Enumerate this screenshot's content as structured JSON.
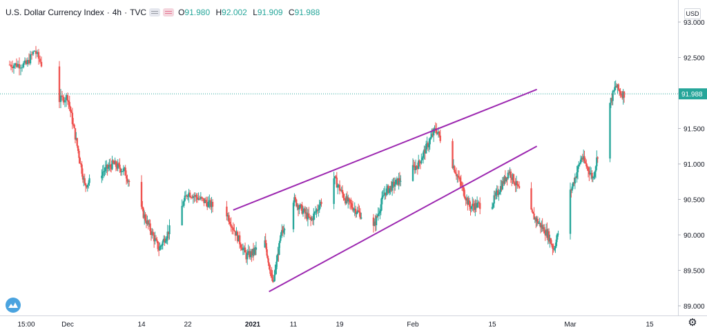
{
  "legend": {
    "title": "U.S. Dollar Currency Index",
    "interval": "4h",
    "source": "TVC",
    "open_label": "O",
    "open": "91.980",
    "high_label": "H",
    "high": "92.002",
    "low_label": "L",
    "low": "91.909",
    "close_label": "C",
    "close": "91.988"
  },
  "currency": "USD",
  "colors": {
    "up": "#26a69a",
    "down": "#ef5350",
    "trendline": "#9c27b0",
    "last_price_line": "#26a69a",
    "axis_text": "#131722"
  },
  "icons": [
    "eye-badge-icon",
    "tradingview-logo-icon",
    "gear-icon"
  ],
  "chart_data": {
    "type": "candlestick",
    "title": "U.S. Dollar Currency Index",
    "xlabel": "",
    "ylabel": "",
    "ylim": [
      88.9,
      93.1
    ],
    "y_ticks": [
      "89.000",
      "89.500",
      "90.000",
      "90.500",
      "91.000",
      "91.500",
      "92.000",
      "92.500",
      "93.000"
    ],
    "x_tick_labels": [
      "15:00",
      "Dec",
      "14",
      "22",
      "2021",
      "11",
      "19",
      "Feb",
      "15",
      "Mar",
      "15"
    ],
    "x_tick_dates": [
      "2020-11-26",
      "2020-12-01",
      "2020-12-14",
      "2020-12-22",
      "2021-01-01",
      "2021-01-11",
      "2021-01-19",
      "2021-02-01",
      "2021-02-15",
      "2021-03-01",
      "2021-03-15"
    ],
    "last_price": 91.988,
    "grid": false,
    "key_points": [
      {
        "date": "2020-11-26",
        "close": 92.4
      },
      {
        "date": "2020-11-27",
        "close": 92.6
      },
      {
        "date": "2020-11-30",
        "close": 91.9
      },
      {
        "date": "2020-12-01",
        "close": 91.95
      },
      {
        "date": "2020-12-04",
        "close": 90.7
      },
      {
        "date": "2020-12-09",
        "close": 91.0
      },
      {
        "date": "2020-12-11",
        "close": 90.9
      },
      {
        "date": "2020-12-17",
        "close": 89.8
      },
      {
        "date": "2020-12-21",
        "close": 90.4
      },
      {
        "date": "2020-12-22",
        "close": 90.6
      },
      {
        "date": "2020-12-28",
        "close": 90.3
      },
      {
        "date": "2020-12-31",
        "close": 89.7
      },
      {
        "date": "2021-01-04",
        "close": 89.9
      },
      {
        "date": "2021-01-06",
        "close": 89.3
      },
      {
        "date": "2021-01-08",
        "close": 90.0
      },
      {
        "date": "2021-01-11",
        "close": 90.5
      },
      {
        "date": "2021-01-14",
        "close": 90.2
      },
      {
        "date": "2021-01-18",
        "close": 90.8
      },
      {
        "date": "2021-01-20",
        "close": 90.5
      },
      {
        "date": "2021-01-25",
        "close": 90.1
      },
      {
        "date": "2021-01-27",
        "close": 90.6
      },
      {
        "date": "2021-02-02",
        "close": 91.0
      },
      {
        "date": "2021-02-05",
        "close": 91.5
      },
      {
        "date": "2021-02-08",
        "close": 91.0
      },
      {
        "date": "2021-02-11",
        "close": 90.4
      },
      {
        "date": "2021-02-15",
        "close": 90.45
      },
      {
        "date": "2021-02-18",
        "close": 90.9
      },
      {
        "date": "2021-02-22",
        "close": 90.3
      },
      {
        "date": "2021-02-25",
        "close": 90.0
      },
      {
        "date": "2021-02-26",
        "close": 89.8
      },
      {
        "date": "2021-03-01",
        "close": 90.6
      },
      {
        "date": "2021-03-03",
        "close": 91.1
      },
      {
        "date": "2021-03-05",
        "close": 90.8
      },
      {
        "date": "2021-03-07",
        "close": 91.6
      },
      {
        "date": "2021-03-09",
        "close": 92.1
      },
      {
        "date": "2021-03-10",
        "close": 91.988
      }
    ],
    "trendlines": [
      {
        "name": "upper-channel-line",
        "points": [
          {
            "date": "2020-12-29",
            "value": 90.35
          },
          {
            "date": "2021-02-23",
            "value": 92.05
          }
        ]
      },
      {
        "name": "lower-channel-line",
        "points": [
          {
            "date": "2021-01-05",
            "value": 89.2
          },
          {
            "date": "2021-02-23",
            "value": 91.25
          }
        ]
      }
    ]
  }
}
